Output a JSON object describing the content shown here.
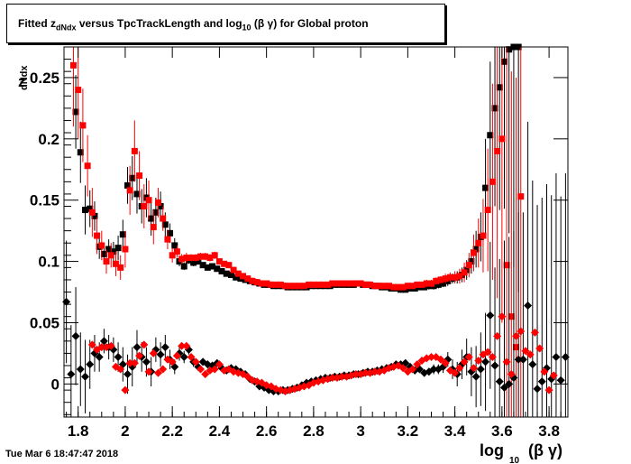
{
  "title_parts": {
    "before": "Fitted  z",
    "sub1": "dNdx",
    "middle": "  versus TpcTrackLength and log",
    "sub2": "10",
    "after": " (β γ) for Global proton"
  },
  "timestamp": "Tue Mar  6 18:47:47 2018",
  "chart_data": {
    "type": "scatter",
    "title": "Fitted z_dNdx versus TpcTrackLength and log10 (β γ) for Global proton",
    "xlabel": "log10 (β γ)",
    "ylabel": "z_dNdx",
    "xlim": [
      1.74,
      3.88
    ],
    "ylim": [
      -0.027,
      0.275
    ],
    "xticks": [
      1.8,
      2,
      2.2,
      2.4,
      2.6,
      2.8,
      3,
      3.2,
      3.4,
      3.6,
      3.8
    ],
    "xtick_labels": [
      "1.8",
      "2",
      "2.2",
      "2.4",
      "2.6",
      "2.8",
      "3",
      "3.2",
      "3.4",
      "3.6",
      "3.8"
    ],
    "yticks": [
      0,
      0.05,
      0.1,
      0.15,
      0.2,
      0.25
    ],
    "ytick_labels": [
      "0",
      "0.05",
      "0.1",
      "0.15",
      "0.2",
      "0.25"
    ],
    "colors": {
      "black": "#000000",
      "red": "#ff0000"
    },
    "series": [
      {
        "marker": "square",
        "color": "#000000",
        "x": [
          1.79,
          1.81,
          1.83,
          1.85,
          1.87,
          1.89,
          1.91,
          1.93,
          1.95,
          1.97,
          1.99,
          2.01,
          2.03,
          2.05,
          2.07,
          2.09,
          2.11,
          2.13,
          2.15,
          2.17,
          2.19,
          2.21,
          2.23,
          2.25,
          2.27,
          2.29,
          2.31,
          2.33,
          2.35,
          2.37,
          2.39,
          2.41,
          2.43,
          2.45,
          2.47,
          2.49,
          2.51,
          2.53,
          2.55,
          2.57,
          2.59,
          2.61,
          2.63,
          2.65,
          2.67,
          2.69,
          2.71,
          2.73,
          2.75,
          2.77,
          2.79,
          2.81,
          2.83,
          2.85,
          2.87,
          2.89,
          2.91,
          2.93,
          2.95,
          2.97,
          2.99,
          3.01,
          3.03,
          3.05,
          3.07,
          3.09,
          3.11,
          3.13,
          3.15,
          3.17,
          3.19,
          3.21,
          3.23,
          3.25,
          3.27,
          3.29,
          3.31,
          3.33,
          3.35,
          3.37,
          3.39,
          3.41,
          3.43,
          3.45,
          3.47,
          3.49,
          3.51,
          3.53,
          3.55,
          3.57,
          3.59,
          3.61,
          3.63,
          3.65,
          3.67
        ],
        "y": [
          0.222,
          0.189,
          0.142,
          0.143,
          0.137,
          0.112,
          0.106,
          0.11,
          0.108,
          0.111,
          0.122,
          0.162,
          0.168,
          0.155,
          0.145,
          0.152,
          0.135,
          0.14,
          0.145,
          0.13,
          0.123,
          0.113,
          0.1,
          0.096,
          0.101,
          0.099,
          0.1,
          0.097,
          0.095,
          0.096,
          0.094,
          0.092,
          0.09,
          0.089,
          0.087,
          0.086,
          0.085,
          0.084,
          0.083,
          0.082,
          0.081,
          0.081,
          0.08,
          0.08,
          0.08,
          0.079,
          0.079,
          0.079,
          0.079,
          0.079,
          0.08,
          0.08,
          0.08,
          0.08,
          0.08,
          0.081,
          0.081,
          0.081,
          0.081,
          0.081,
          0.082,
          0.081,
          0.081,
          0.08,
          0.08,
          0.079,
          0.079,
          0.078,
          0.078,
          0.077,
          0.077,
          0.078,
          0.078,
          0.079,
          0.079,
          0.08,
          0.08,
          0.081,
          0.082,
          0.084,
          0.086,
          0.087,
          0.089,
          0.093,
          0.1,
          0.11,
          0.12,
          0.16,
          0.203,
          0.225,
          0.242,
          0.263,
          0.273,
          0.275,
          0.275
        ],
        "err": [
          0.03,
          0.025,
          0.02,
          0.015,
          0.012,
          0.01,
          0.008,
          0.008,
          0.008,
          0.01,
          0.012,
          0.015,
          0.018,
          0.016,
          0.014,
          0.016,
          0.014,
          0.012,
          0.012,
          0.01,
          0.008,
          0.006,
          0.004,
          0.003,
          0.003,
          0.003,
          0.002,
          0.002,
          0.002,
          0.002,
          0.002,
          0.002,
          0.002,
          0.002,
          0.002,
          0.002,
          0.002,
          0.002,
          0.002,
          0.002,
          0.002,
          0.002,
          0.002,
          0.002,
          0.002,
          0.002,
          0.002,
          0.002,
          0.002,
          0.002,
          0.002,
          0.002,
          0.002,
          0.002,
          0.002,
          0.002,
          0.002,
          0.002,
          0.002,
          0.002,
          0.002,
          0.002,
          0.002,
          0.002,
          0.002,
          0.002,
          0.002,
          0.002,
          0.002,
          0.002,
          0.002,
          0.002,
          0.002,
          0.002,
          0.002,
          0.003,
          0.003,
          0.003,
          0.003,
          0.004,
          0.004,
          0.005,
          0.006,
          0.008,
          0.01,
          0.015,
          0.02,
          0.04,
          0.06,
          0.08,
          0.1,
          0.12,
          0.15,
          0.18,
          0.2
        ]
      },
      {
        "marker": "square",
        "color": "#ff0000",
        "x": [
          1.78,
          1.8,
          1.82,
          1.84,
          1.86,
          1.88,
          1.9,
          1.92,
          1.94,
          1.96,
          1.98,
          2.0,
          2.02,
          2.04,
          2.06,
          2.08,
          2.1,
          2.12,
          2.14,
          2.16,
          2.18,
          2.2,
          2.22,
          2.24,
          2.26,
          2.28,
          2.3,
          2.32,
          2.34,
          2.36,
          2.38,
          2.4,
          2.42,
          2.44,
          2.46,
          2.48,
          2.5,
          2.52,
          2.54,
          2.56,
          2.58,
          2.6,
          2.62,
          2.64,
          2.66,
          2.68,
          2.7,
          2.72,
          2.74,
          2.76,
          2.78,
          2.8,
          2.82,
          2.84,
          2.86,
          2.88,
          2.9,
          2.92,
          2.94,
          2.96,
          2.98,
          3.0,
          3.02,
          3.04,
          3.06,
          3.08,
          3.1,
          3.12,
          3.14,
          3.16,
          3.18,
          3.2,
          3.22,
          3.24,
          3.26,
          3.28,
          3.3,
          3.32,
          3.34,
          3.36,
          3.38,
          3.4,
          3.42,
          3.44,
          3.46,
          3.48,
          3.5,
          3.52,
          3.54,
          3.56,
          3.58,
          3.6,
          3.62,
          3.64,
          3.66,
          3.68
        ],
        "y": [
          0.26,
          0.24,
          0.211,
          0.178,
          0.14,
          0.121,
          0.113,
          0.1,
          0.105,
          0.098,
          0.095,
          0.11,
          0.158,
          0.19,
          0.17,
          0.145,
          0.15,
          0.128,
          0.148,
          0.135,
          0.118,
          0.105,
          0.108,
          0.102,
          0.103,
          0.103,
          0.103,
          0.104,
          0.104,
          0.103,
          0.105,
          0.1,
          0.098,
          0.097,
          0.093,
          0.09,
          0.088,
          0.086,
          0.084,
          0.083,
          0.082,
          0.082,
          0.081,
          0.081,
          0.081,
          0.08,
          0.08,
          0.08,
          0.08,
          0.08,
          0.081,
          0.081,
          0.081,
          0.081,
          0.081,
          0.082,
          0.082,
          0.082,
          0.082,
          0.082,
          0.082,
          0.082,
          0.081,
          0.081,
          0.08,
          0.08,
          0.08,
          0.08,
          0.079,
          0.079,
          0.079,
          0.08,
          0.08,
          0.081,
          0.081,
          0.082,
          0.082,
          0.084,
          0.085,
          0.086,
          0.087,
          0.087,
          0.088,
          0.091,
          0.097,
          0.107,
          0.115,
          0.121,
          0.142,
          0.165,
          0.19,
          0.2,
          0.097,
          0.055,
          0.03,
          0.153
        ],
        "err": [
          0.05,
          0.04,
          0.03,
          0.025,
          0.02,
          0.015,
          0.012,
          0.01,
          0.01,
          0.01,
          0.01,
          0.015,
          0.02,
          0.025,
          0.02,
          0.018,
          0.016,
          0.014,
          0.012,
          0.01,
          0.008,
          0.006,
          0.005,
          0.004,
          0.004,
          0.003,
          0.003,
          0.003,
          0.003,
          0.003,
          0.003,
          0.002,
          0.002,
          0.002,
          0.002,
          0.002,
          0.002,
          0.002,
          0.002,
          0.002,
          0.002,
          0.002,
          0.002,
          0.002,
          0.002,
          0.002,
          0.002,
          0.002,
          0.002,
          0.002,
          0.002,
          0.002,
          0.002,
          0.002,
          0.002,
          0.002,
          0.002,
          0.002,
          0.002,
          0.002,
          0.002,
          0.002,
          0.002,
          0.002,
          0.002,
          0.002,
          0.002,
          0.002,
          0.002,
          0.002,
          0.002,
          0.002,
          0.002,
          0.002,
          0.002,
          0.003,
          0.003,
          0.003,
          0.003,
          0.004,
          0.004,
          0.005,
          0.006,
          0.008,
          0.01,
          0.015,
          0.02,
          0.03,
          0.05,
          0.08,
          0.12,
          0.15,
          0.18,
          0.2,
          0.22,
          0.25
        ]
      },
      {
        "marker": "diamond",
        "color": "#000000",
        "x": [
          1.75,
          1.77,
          1.79,
          1.81,
          1.83,
          1.85,
          1.87,
          1.89,
          1.91,
          1.93,
          1.95,
          1.97,
          1.99,
          2.01,
          2.03,
          2.05,
          2.07,
          2.09,
          2.11,
          2.13,
          2.15,
          2.17,
          2.19,
          2.21,
          2.23,
          2.25,
          2.27,
          2.29,
          2.31,
          2.33,
          2.35,
          2.37,
          2.39,
          2.41,
          2.43,
          2.45,
          2.47,
          2.49,
          2.51,
          2.53,
          2.55,
          2.57,
          2.59,
          2.61,
          2.63,
          2.65,
          2.67,
          2.69,
          2.71,
          2.73,
          2.75,
          2.77,
          2.79,
          2.81,
          2.83,
          2.85,
          2.87,
          2.89,
          2.91,
          2.93,
          2.95,
          2.97,
          2.99,
          3.01,
          3.03,
          3.05,
          3.07,
          3.09,
          3.11,
          3.13,
          3.15,
          3.17,
          3.19,
          3.21,
          3.23,
          3.25,
          3.27,
          3.29,
          3.31,
          3.33,
          3.35,
          3.37,
          3.39,
          3.41,
          3.43,
          3.45,
          3.47,
          3.49,
          3.51,
          3.53,
          3.55,
          3.57,
          3.59,
          3.61,
          3.63,
          3.65,
          3.67,
          3.69,
          3.71,
          3.73,
          3.75,
          3.77,
          3.79,
          3.81,
          3.83,
          3.85,
          3.87
        ],
        "y": [
          0.067,
          0.008,
          0.039,
          0.012,
          0.006,
          0.016,
          0.025,
          0.022,
          0.035,
          0.03,
          0.028,
          0.022,
          0.016,
          0.008,
          0.014,
          0.03,
          0.022,
          0.018,
          0.01,
          0.028,
          0.024,
          0.03,
          0.02,
          0.014,
          0.025,
          0.022,
          0.028,
          0.018,
          0.014,
          0.018,
          0.016,
          0.015,
          0.017,
          0.013,
          0.011,
          0.013,
          0.012,
          0.01,
          0.008,
          0.004,
          0.002,
          -0.002,
          -0.003,
          -0.005,
          -0.006,
          -0.006,
          -0.005,
          -0.005,
          -0.004,
          -0.003,
          -0.001,
          0.001,
          0.002,
          0.003,
          0.004,
          0.005,
          0.005,
          0.006,
          0.006,
          0.007,
          0.007,
          0.008,
          0.008,
          0.009,
          0.01,
          0.01,
          0.011,
          0.012,
          0.013,
          0.014,
          0.016,
          0.016,
          0.017,
          0.014,
          0.011,
          0.012,
          0.009,
          0.01,
          0.012,
          0.012,
          0.014,
          0.02,
          0.012,
          0.008,
          0.016,
          0.022,
          0.01,
          0.006,
          0.012,
          0.018,
          0.056,
          0.015,
          0.002,
          -0.003,
          0.0,
          0.005,
          0.02,
          0.02,
          0.064,
          0.016,
          -0.004,
          0.002,
          0.013,
          0.004,
          0.022,
          0.003,
          0.022
        ],
        "err": [
          0.05,
          0.04,
          0.04,
          0.03,
          0.03,
          0.02,
          0.015,
          0.012,
          0.01,
          0.01,
          0.01,
          0.012,
          0.014,
          0.016,
          0.016,
          0.014,
          0.012,
          0.012,
          0.012,
          0.01,
          0.01,
          0.01,
          0.008,
          0.006,
          0.006,
          0.005,
          0.004,
          0.004,
          0.003,
          0.003,
          0.003,
          0.003,
          0.003,
          0.003,
          0.003,
          0.003,
          0.003,
          0.002,
          0.002,
          0.002,
          0.002,
          0.002,
          0.002,
          0.002,
          0.002,
          0.002,
          0.002,
          0.002,
          0.002,
          0.002,
          0.002,
          0.002,
          0.002,
          0.002,
          0.002,
          0.002,
          0.002,
          0.002,
          0.002,
          0.002,
          0.002,
          0.002,
          0.002,
          0.002,
          0.002,
          0.002,
          0.002,
          0.002,
          0.002,
          0.002,
          0.002,
          0.002,
          0.003,
          0.003,
          0.003,
          0.003,
          0.003,
          0.003,
          0.004,
          0.004,
          0.005,
          0.006,
          0.008,
          0.01,
          0.012,
          0.015,
          0.02,
          0.025,
          0.03,
          0.04,
          0.06,
          0.08,
          0.1,
          0.12,
          0.12,
          0.12,
          0.12,
          0.12,
          0.15,
          0.15,
          0.15,
          0.15,
          0.15,
          0.15,
          0.15,
          0.15,
          0.15
        ]
      },
      {
        "marker": "diamond",
        "color": "#ff0000",
        "x": [
          1.86,
          1.88,
          1.9,
          1.92,
          1.94,
          1.96,
          1.98,
          2.0,
          2.02,
          2.04,
          2.06,
          2.08,
          2.1,
          2.12,
          2.14,
          2.16,
          2.18,
          2.2,
          2.22,
          2.24,
          2.26,
          2.28,
          2.3,
          2.32,
          2.34,
          2.36,
          2.38,
          2.4,
          2.42,
          2.44,
          2.46,
          2.48,
          2.5,
          2.52,
          2.54,
          2.56,
          2.58,
          2.6,
          2.62,
          2.64,
          2.66,
          2.68,
          2.7,
          2.72,
          2.74,
          2.76,
          2.78,
          2.8,
          2.82,
          2.84,
          2.86,
          2.88,
          2.9,
          2.92,
          2.94,
          2.96,
          2.98,
          3.0,
          3.02,
          3.04,
          3.06,
          3.08,
          3.1,
          3.12,
          3.14,
          3.16,
          3.18,
          3.2,
          3.22,
          3.24,
          3.26,
          3.28,
          3.3,
          3.32,
          3.34,
          3.36,
          3.38,
          3.4,
          3.42,
          3.44,
          3.46,
          3.48,
          3.5,
          3.52,
          3.54,
          3.56,
          3.58,
          3.6,
          3.62,
          3.64,
          3.66,
          3.68,
          3.7,
          3.72,
          3.74,
          3.76,
          3.78,
          3.8,
          3.82
        ],
        "y": [
          0.032,
          0.028,
          0.03,
          0.03,
          0.031,
          0.014,
          0.012,
          -0.005,
          0.017,
          0.017,
          0.023,
          0.032,
          0.01,
          0.025,
          0.009,
          0.012,
          0.02,
          0.018,
          0.023,
          0.031,
          0.031,
          0.022,
          0.018,
          0.012,
          0.008,
          0.011,
          0.012,
          0.016,
          0.011,
          0.012,
          0.01,
          0.009,
          0.008,
          0.006,
          0.003,
          0.002,
          0.001,
          -0.001,
          -0.002,
          -0.004,
          -0.005,
          -0.006,
          -0.005,
          -0.004,
          -0.003,
          -0.002,
          -0.001,
          0.001,
          0.002,
          0.003,
          0.004,
          0.005,
          0.005,
          0.006,
          0.006,
          0.007,
          0.008,
          0.008,
          0.009,
          0.009,
          0.01,
          0.01,
          0.011,
          0.013,
          0.014,
          0.015,
          0.013,
          0.01,
          0.012,
          0.016,
          0.019,
          0.021,
          0.022,
          0.022,
          0.02,
          0.017,
          0.011,
          0.009,
          0.013,
          0.018,
          0.022,
          0.013,
          0.019,
          0.024,
          0.026,
          0.022,
          0.039,
          0.055,
          0.018,
          0.008,
          0.039,
          0.043,
          0.027,
          0.024,
          0.042,
          0.029,
          0.01,
          -0.005,
          0.007
        ]
      }
    ]
  }
}
